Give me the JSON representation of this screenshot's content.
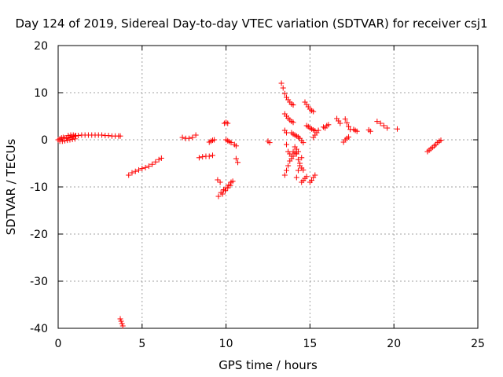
{
  "chart_data": {
    "type": "scatter",
    "title": "Day 124 of 2019, Sidereal Day-to-day VTEC variation (SDTVAR) for receiver csj1",
    "xlabel": "GPS time / hours",
    "ylabel": "SDTVAR / TECUs",
    "xlim": [
      0,
      25
    ],
    "ylim": [
      -40,
      20
    ],
    "xticks": [
      "0",
      "5",
      "10",
      "15",
      "20",
      "25"
    ],
    "yticks": [
      "20",
      "10",
      "0",
      "-10",
      "-20",
      "-30",
      "-40"
    ],
    "grid": true,
    "marker": "plus",
    "color": "#ff0000",
    "series": [
      {
        "x": [
          0.0,
          0.1,
          0.2,
          0.3,
          0.4,
          0.5,
          0.6,
          0.7,
          0.8,
          0.9,
          1.0,
          1.2,
          1.4,
          1.6,
          1.8,
          2.0,
          2.2,
          2.4,
          2.6,
          2.8,
          3.0,
          3.2,
          3.4,
          3.6,
          3.7,
          0.1,
          0.25,
          0.4,
          0.55,
          0.7,
          0.85,
          1.0,
          0.6,
          0.75,
          0.9,
          1.05,
          3.7,
          3.75,
          3.8,
          3.85,
          4.2,
          4.4,
          4.6,
          4.8,
          5.0,
          5.2,
          5.4,
          5.6,
          5.8,
          6.0,
          6.15,
          7.4,
          7.6,
          7.8,
          8.0,
          8.2,
          8.4,
          8.6,
          8.8,
          9.0,
          9.2,
          9.0,
          9.1,
          9.2,
          9.3,
          9.5,
          9.65,
          9.55,
          9.7,
          9.85,
          10.0,
          10.15,
          10.3,
          9.8,
          9.95,
          10.1,
          10.25,
          10.4,
          9.9,
          10.0,
          10.1,
          10.0,
          10.1,
          10.2,
          10.3,
          10.5,
          10.6,
          10.6,
          10.7,
          12.5,
          12.6,
          13.3,
          13.4,
          13.5,
          13.6,
          13.7,
          13.8,
          13.9,
          14.0,
          13.5,
          13.6,
          13.7,
          13.8,
          13.9,
          14.0,
          13.5,
          13.6,
          13.9,
          14.0,
          14.1,
          14.2,
          14.3,
          14.4,
          14.5,
          14.6,
          13.5,
          13.6,
          13.7,
          13.8,
          13.9,
          14.0,
          14.1,
          14.2,
          14.3,
          14.4,
          14.5,
          14.6,
          13.6,
          13.7,
          13.8,
          13.9,
          14.0,
          14.1,
          14.2,
          14.3,
          14.2,
          14.3,
          14.4,
          14.5,
          14.5,
          14.6,
          14.7,
          14.8,
          14.7,
          14.8,
          14.9,
          15.0,
          15.1,
          15.2,
          14.8,
          14.9,
          15.0,
          15.1,
          15.2,
          15.3,
          15.0,
          15.1,
          15.2,
          15.3,
          15.2,
          15.3,
          15.4,
          15.5,
          15.8,
          15.9,
          16.0,
          16.1,
          16.6,
          16.7,
          16.8,
          17.1,
          17.2,
          17.3,
          17.4,
          17.0,
          17.1,
          17.2,
          17.3,
          17.6,
          17.7,
          17.8,
          18.5,
          18.6,
          19.0,
          19.2,
          19.4,
          19.6,
          20.2,
          22.0,
          22.1,
          22.2,
          22.3,
          22.4,
          22.5,
          22.6,
          22.7,
          22.8
        ],
        "y": [
          0.0,
          0.2,
          0.4,
          0.5,
          0.4,
          0.3,
          0.4,
          0.5,
          0.6,
          0.7,
          0.8,
          0.9,
          1.0,
          1.0,
          1.0,
          1.0,
          1.0,
          1.0,
          1.0,
          0.9,
          0.9,
          0.8,
          0.8,
          0.8,
          0.8,
          -0.3,
          -0.3,
          -0.2,
          -0.1,
          0.0,
          0.1,
          0.2,
          0.9,
          1.0,
          1.0,
          0.9,
          -38.0,
          -38.5,
          -39.0,
          -39.5,
          -7.5,
          -7.0,
          -6.7,
          -6.4,
          -6.1,
          -5.9,
          -5.6,
          -5.2,
          -4.7,
          -4.2,
          -3.9,
          0.5,
          0.3,
          0.3,
          0.5,
          1.0,
          -3.8,
          -3.6,
          -3.5,
          -3.5,
          -3.3,
          -0.5,
          -0.3,
          -0.1,
          0.0,
          -8.5,
          -9.0,
          -12.0,
          -11.2,
          -10.6,
          -10.2,
          -9.6,
          -9.0,
          -11.5,
          -10.8,
          -10.2,
          -9.7,
          -8.8,
          3.5,
          3.7,
          3.5,
          0.0,
          -0.2,
          -0.4,
          -0.6,
          -1.0,
          -1.3,
          -4.0,
          -4.8,
          -0.3,
          -0.6,
          12.0,
          11.0,
          9.8,
          9.0,
          8.5,
          8.0,
          7.6,
          7.4,
          5.5,
          5.0,
          4.6,
          4.2,
          3.9,
          3.7,
          2.0,
          1.5,
          1.5,
          1.2,
          1.0,
          0.8,
          0.6,
          0.3,
          -0.2,
          -0.6,
          -7.5,
          -6.5,
          -5.5,
          -4.5,
          -3.5,
          -2.5,
          -1.5,
          -3.0,
          -4.2,
          -5.5,
          -6.0,
          -6.4,
          -1.0,
          -2.5,
          -3.0,
          -4.0,
          -3.5,
          -2.8,
          -2.0,
          -2.5,
          -8.0,
          -6.5,
          -5.0,
          -3.8,
          -9.0,
          -8.6,
          -8.2,
          -7.8,
          8.0,
          7.5,
          7.0,
          6.5,
          6.2,
          6.0,
          3.0,
          2.8,
          2.5,
          2.3,
          2.1,
          1.9,
          -9.0,
          -8.6,
          -8.0,
          -7.5,
          0.5,
          1.0,
          1.5,
          2.0,
          2.7,
          2.5,
          3.0,
          3.2,
          4.5,
          4.0,
          3.5,
          4.4,
          3.6,
          2.8,
          2.2,
          -0.5,
          0.0,
          0.3,
          0.6,
          2.2,
          2.0,
          1.8,
          2.1,
          1.8,
          3.9,
          3.5,
          3.0,
          2.5,
          2.3,
          -2.5,
          -2.2,
          -1.9,
          -1.6,
          -1.3,
          -1.0,
          -0.6,
          -0.3,
          -0.1
        ]
      }
    ]
  }
}
